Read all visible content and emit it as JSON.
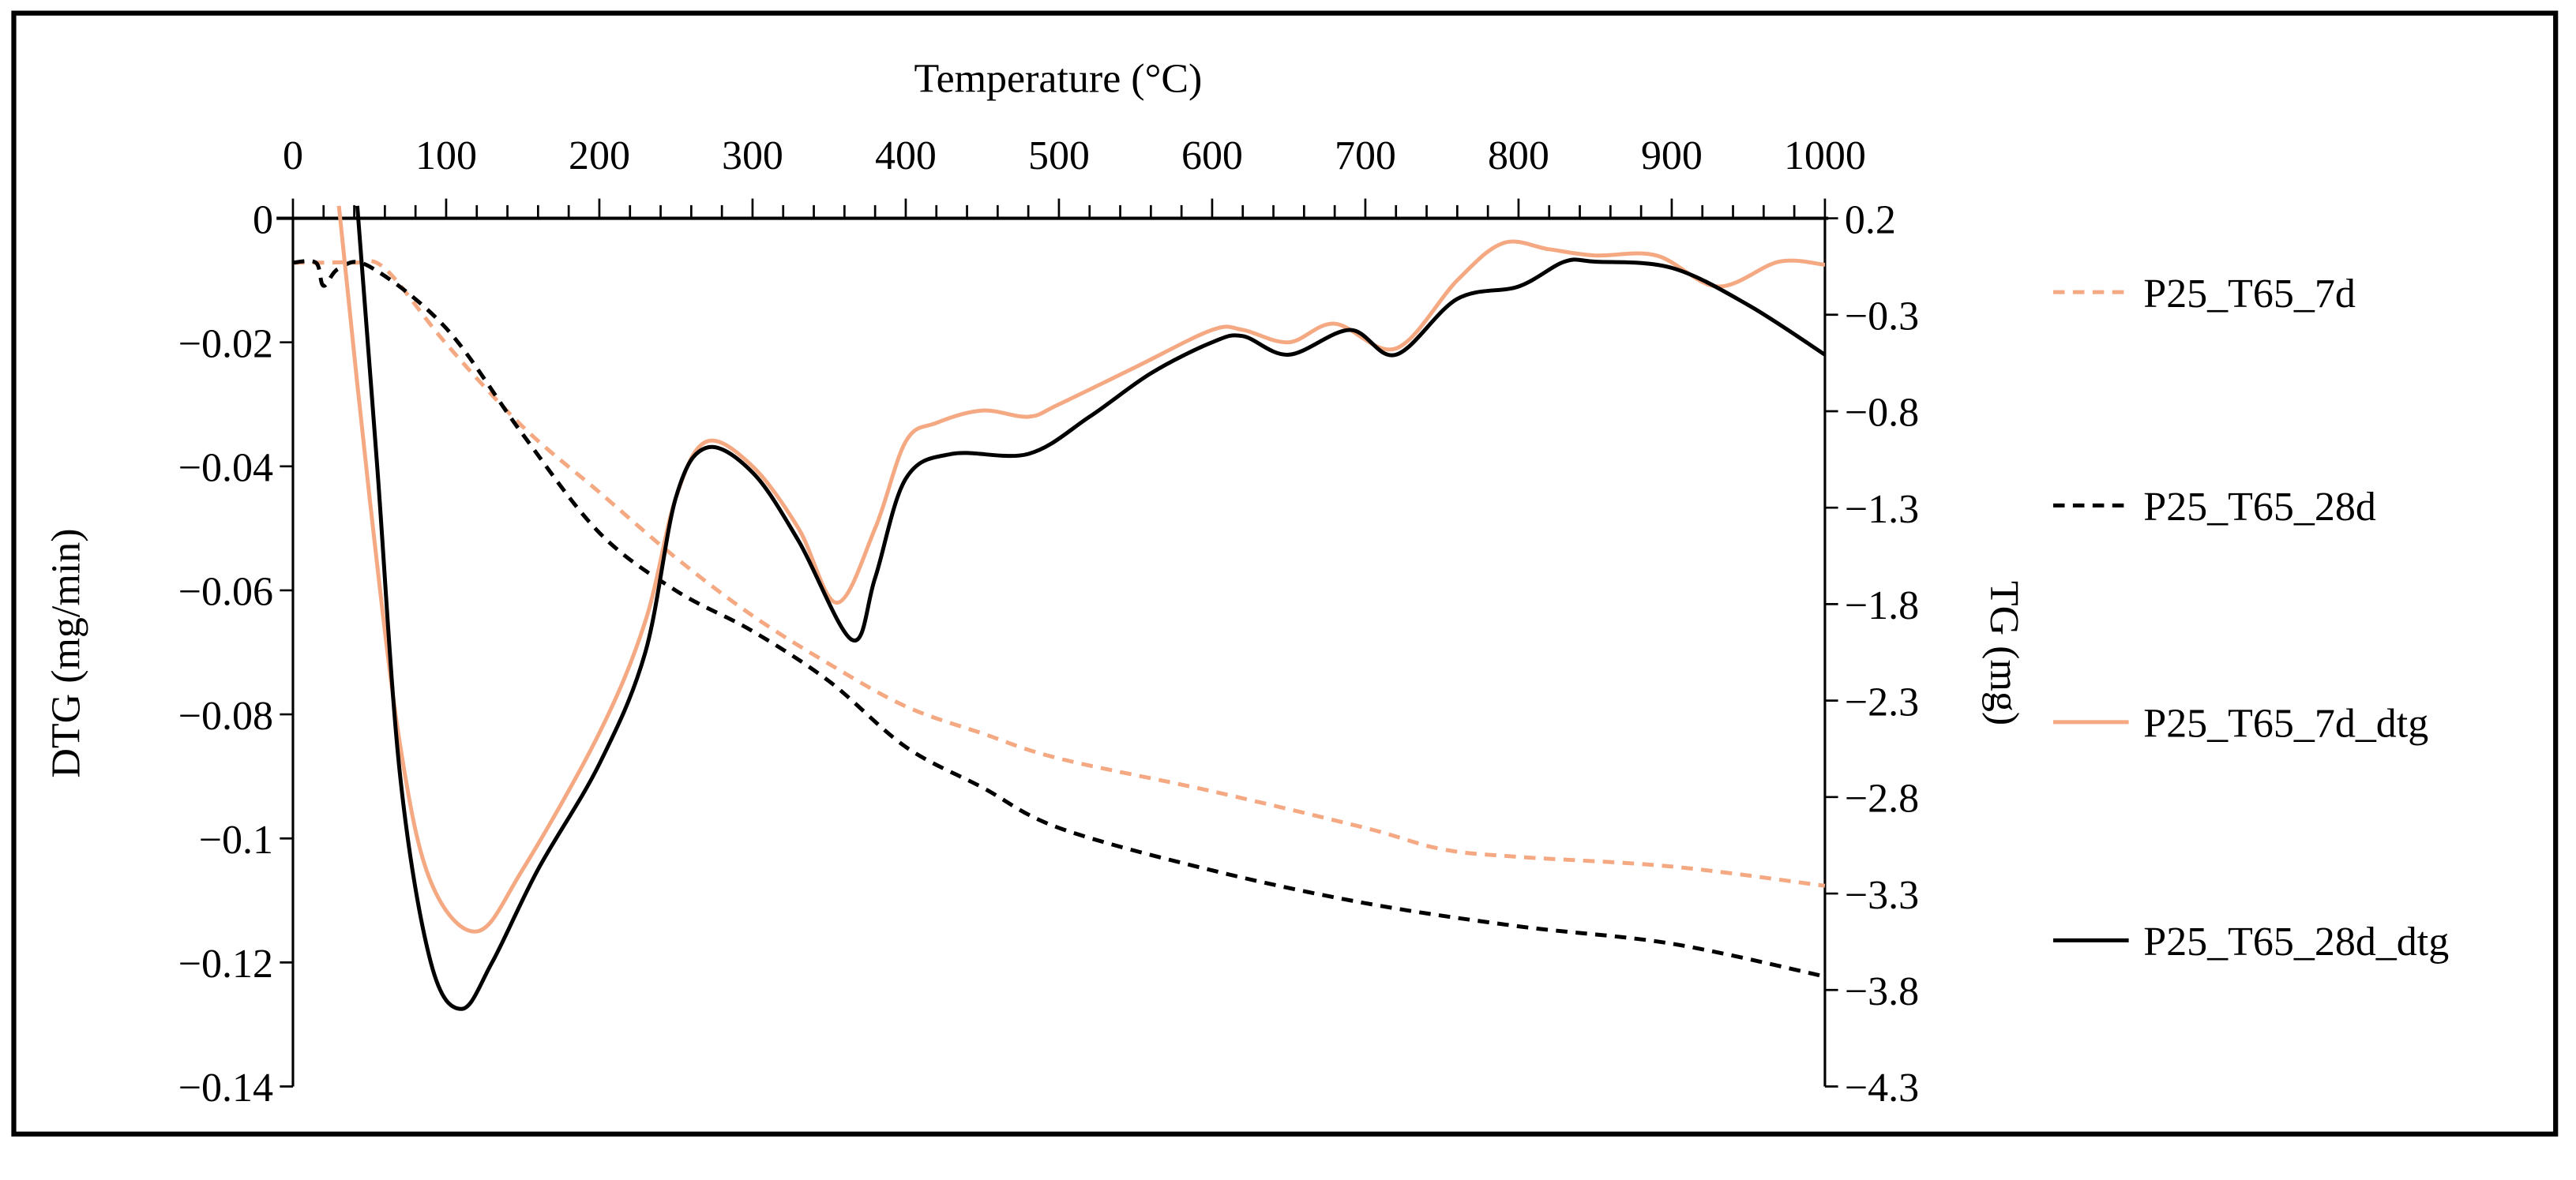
{
  "chart_data": {
    "type": "line",
    "title": "",
    "xlabel": "Temperature (°C)",
    "ylabel": "DTG (mg/min)",
    "y2label": "TG (mg)",
    "xlim": [
      0,
      1000
    ],
    "ylim": [
      -0.14,
      0
    ],
    "y2lim": [
      -4.3,
      0.2
    ],
    "x_ticks": [
      "0",
      "100",
      "200",
      "300",
      "400",
      "500",
      "600",
      "700",
      "800",
      "900",
      "1000"
    ],
    "y_ticks": [
      "0",
      "−0.02",
      "−0.04",
      "−0.06",
      "−0.08",
      "−0.1",
      "−0.12",
      "−0.14"
    ],
    "y2_ticks": [
      "0.2",
      "−0.3",
      "−0.8",
      "−1.3",
      "−1.8",
      "−2.3",
      "−2.8",
      "−3.3",
      "−3.8",
      "−4.3"
    ],
    "grid": false,
    "legend_position": "right",
    "colors": {
      "orange": "#F4A982",
      "black": "#000000"
    },
    "series": [
      {
        "name": "P25_T65_7d",
        "axis": "y2",
        "style": "dashed",
        "color": "#F4A982",
        "x": [
          0,
          20,
          40,
          60,
          100,
          150,
          200,
          250,
          300,
          350,
          400,
          450,
          500,
          600,
          700,
          750,
          800,
          900,
          1000
        ],
        "y": [
          -0.03,
          -0.03,
          -0.03,
          -0.06,
          -0.45,
          -0.88,
          -1.22,
          -1.56,
          -1.86,
          -2.11,
          -2.33,
          -2.47,
          -2.6,
          -2.77,
          -2.96,
          -3.07,
          -3.11,
          -3.16,
          -3.26
        ]
      },
      {
        "name": "P25_T65_28d",
        "axis": "y2",
        "style": "dashed",
        "color": "#000000",
        "x": [
          0,
          15,
          20,
          30,
          50,
          100,
          150,
          200,
          250,
          300,
          350,
          400,
          450,
          500,
          600,
          700,
          800,
          900,
          1000
        ],
        "y": [
          -0.03,
          -0.03,
          -0.15,
          -0.06,
          -0.05,
          -0.37,
          -0.92,
          -1.43,
          -1.73,
          -1.94,
          -2.2,
          -2.54,
          -2.75,
          -2.96,
          -3.18,
          -3.35,
          -3.47,
          -3.56,
          -3.73
        ]
      },
      {
        "name": "P25_T65_7d_dtg",
        "axis": "y",
        "style": "solid",
        "color": "#F4A982",
        "x": [
          30,
          50,
          70,
          90,
          120,
          150,
          200,
          230,
          250,
          270,
          300,
          330,
          355,
          380,
          400,
          420,
          450,
          480,
          500,
          550,
          600,
          620,
          650,
          680,
          720,
          760,
          790,
          820,
          850,
          890,
          930,
          970,
          1000
        ],
        "y": [
          0.002,
          -0.045,
          -0.085,
          -0.107,
          -0.115,
          -0.105,
          -0.083,
          -0.065,
          -0.045,
          -0.036,
          -0.04,
          -0.05,
          -0.062,
          -0.05,
          -0.036,
          -0.033,
          -0.031,
          -0.032,
          -0.03,
          -0.024,
          -0.018,
          -0.018,
          -0.02,
          -0.017,
          -0.021,
          -0.01,
          -0.004,
          -0.005,
          -0.006,
          -0.006,
          -0.011,
          -0.007,
          -0.0075
        ]
      },
      {
        "name": "P25_T65_28d_dtg",
        "axis": "y",
        "style": "solid",
        "color": "#000000",
        "x": [
          42,
          55,
          70,
          90,
          110,
          130,
          160,
          200,
          230,
          250,
          270,
          300,
          330,
          365,
          380,
          400,
          430,
          480,
          520,
          560,
          600,
          620,
          650,
          690,
          720,
          760,
          800,
          830,
          850,
          900,
          950,
          1000
        ],
        "y": [
          0.002,
          -0.04,
          -0.09,
          -0.12,
          -0.1275,
          -0.12,
          -0.105,
          -0.088,
          -0.07,
          -0.045,
          -0.037,
          -0.041,
          -0.052,
          -0.068,
          -0.058,
          -0.042,
          -0.038,
          -0.038,
          -0.032,
          -0.025,
          -0.02,
          -0.019,
          -0.022,
          -0.018,
          -0.022,
          -0.013,
          -0.011,
          -0.007,
          -0.007,
          -0.008,
          -0.014,
          -0.022
        ]
      }
    ]
  }
}
